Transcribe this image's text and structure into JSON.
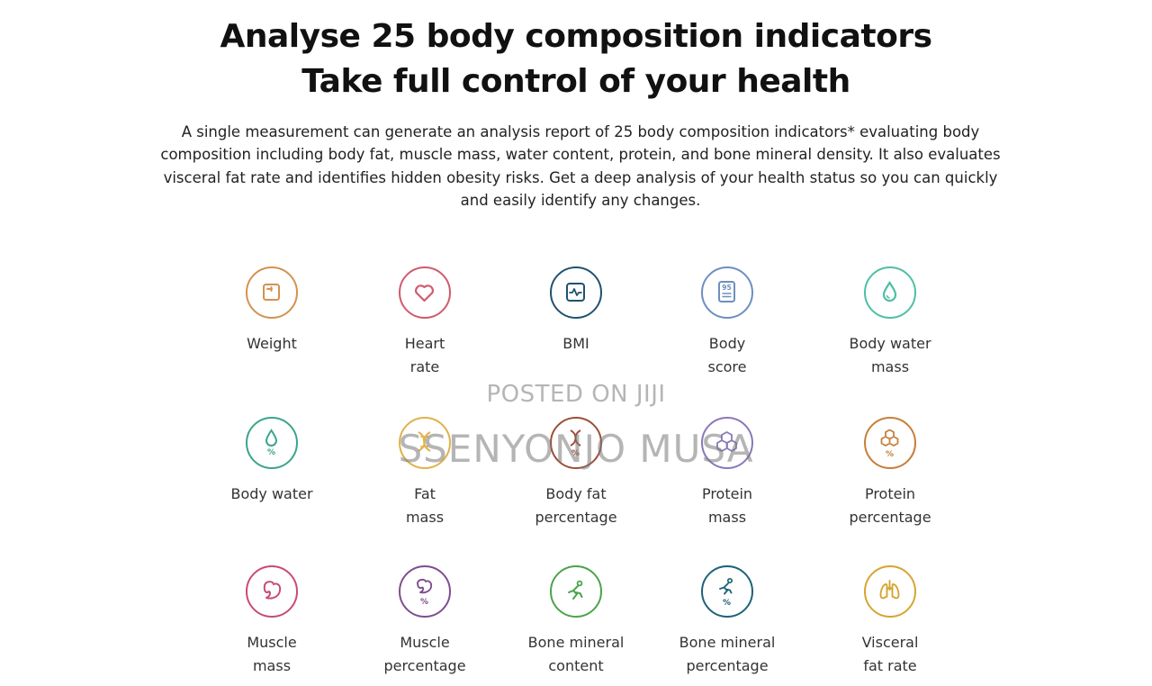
{
  "header": {
    "title_line1": "Analyse 25 body composition indicators",
    "title_line2": "Take full control of your health"
  },
  "intro": "A single measurement can generate an analysis report of 25 body composition indicators* evaluating body composition including body fat, muscle mass, water content, protein, and bone mineral density. It also evaluates visceral fat rate and identifies hidden obesity risks. Get a deep analysis of your health status so you can quickly and easily identify any changes.",
  "indicators": [
    {
      "line1": "Weight",
      "line2": "",
      "icon": "weight-scale-icon",
      "color": "#d4924f"
    },
    {
      "line1": "Heart",
      "line2": "rate",
      "icon": "heart-icon",
      "color": "#d05a6e"
    },
    {
      "line1": "BMI",
      "line2": "",
      "icon": "bmi-pulse-icon",
      "color": "#1f5270"
    },
    {
      "line1": "Body",
      "line2": "score",
      "icon": "score-report-icon",
      "color": "#6c8fc0"
    },
    {
      "line1": "Body water",
      "line2": "mass",
      "icon": "water-drop-icon",
      "color": "#4dbfa4"
    },
    {
      "line1": "Body water",
      "line2": "",
      "icon": "water-percent-icon",
      "color": "#3aa58a"
    },
    {
      "line1": "Fat",
      "line2": "mass",
      "icon": "fat-strand-icon",
      "color": "#e1b14a"
    },
    {
      "line1": "Body fat",
      "line2": "percentage",
      "icon": "fat-percent-icon",
      "color": "#9b4f38"
    },
    {
      "line1": "Protein",
      "line2": "mass",
      "icon": "protein-molecule-icon",
      "color": "#8a78b8"
    },
    {
      "line1": "Protein",
      "line2": "percentage",
      "icon": "protein-percent-icon",
      "color": "#c67f3a"
    },
    {
      "line1": "Muscle",
      "line2": "mass",
      "icon": "muscle-arm-icon",
      "color": "#c94b73"
    },
    {
      "line1": "Muscle",
      "line2": "percentage",
      "icon": "muscle-percent-icon",
      "color": "#7f4e8f"
    },
    {
      "line1": "Bone mineral",
      "line2": "content",
      "icon": "bone-mineral-icon",
      "color": "#4aa44a"
    },
    {
      "line1": "Bone mineral",
      "line2": "percentage",
      "icon": "bone-percent-icon",
      "color": "#1d6279"
    },
    {
      "line1": "Visceral",
      "line2": "fat rate",
      "icon": "lungs-icon",
      "color": "#d6a532"
    }
  ],
  "watermark": {
    "line1": "POSTED ON JIJI",
    "line2": "SSENYONJO MUSA"
  }
}
